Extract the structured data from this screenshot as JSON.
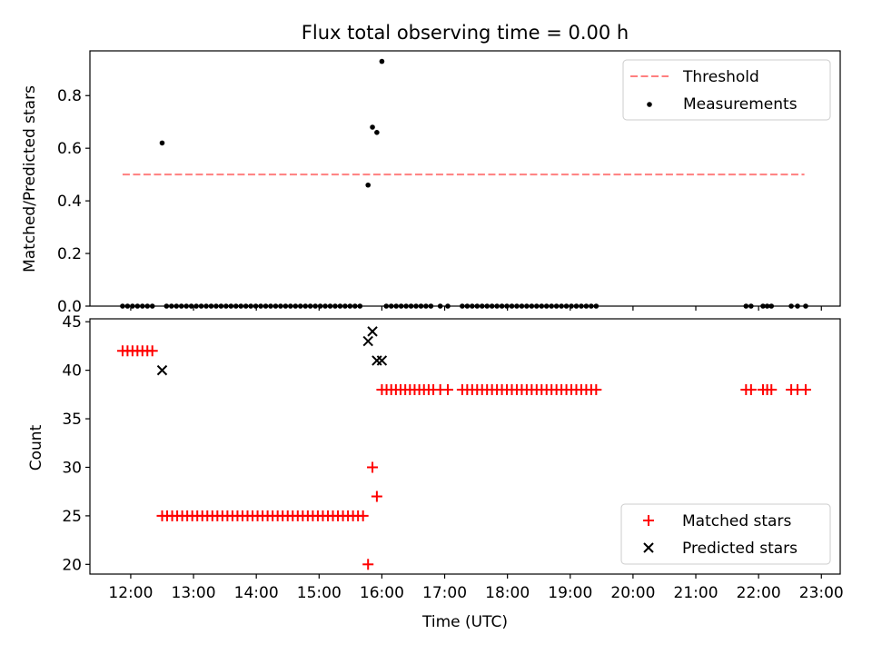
{
  "chart_data": [
    {
      "type": "scatter",
      "title": "Flux total observing time = 0.00 h",
      "ylabel": "Matched/Predicted stars",
      "xlim": [
        11.35,
        23.3
      ],
      "ylim": [
        0,
        0.97
      ],
      "yticks": [
        0.0,
        0.2,
        0.4,
        0.6,
        0.8
      ],
      "ytick_labels": [
        "0.0",
        "0.2",
        "0.4",
        "0.6",
        "0.8"
      ],
      "grid": false,
      "legend_position": "top-right",
      "series": [
        {
          "name": "Threshold",
          "kind": "dashed-line",
          "color": "#ff7f7f",
          "x": [
            11.87,
            22.73
          ],
          "y": [
            0.5,
            0.5
          ]
        },
        {
          "name": "Measurements",
          "kind": "dots",
          "color": "#000000",
          "points": [
            [
              12.5,
              0.62
            ],
            [
              15.78,
              0.46
            ],
            [
              15.85,
              0.68
            ],
            [
              15.92,
              0.66
            ],
            [
              16.0,
              0.93
            ]
          ],
          "zero_ranges": [
            [
              11.87,
              12.42,
              0.079
            ],
            [
              12.57,
              15.7,
              0.079
            ],
            [
              16.07,
              16.82,
              0.079
            ],
            [
              16.93,
              17.05,
              0.12
            ],
            [
              17.28,
              19.47,
              0.079
            ],
            [
              21.8,
              21.88,
              0.08
            ],
            [
              22.07,
              22.27,
              0.067
            ],
            [
              22.52,
              22.62,
              0.1
            ],
            [
              22.75,
              22.75,
              1
            ]
          ]
        }
      ]
    },
    {
      "type": "scatter",
      "xlabel": "Time (UTC)",
      "ylabel": "Count",
      "xlim": [
        11.35,
        23.3
      ],
      "ylim": [
        19,
        45.3
      ],
      "xticks": [
        12,
        13,
        14,
        15,
        16,
        17,
        18,
        19,
        20,
        21,
        22,
        23
      ],
      "xtick_labels": [
        "12:00",
        "13:00",
        "14:00",
        "15:00",
        "16:00",
        "17:00",
        "18:00",
        "19:00",
        "20:00",
        "21:00",
        "22:00",
        "23:00"
      ],
      "yticks": [
        20,
        25,
        30,
        35,
        40,
        45
      ],
      "ytick_labels": [
        "20",
        "25",
        "30",
        "35",
        "40",
        "45"
      ],
      "grid": false,
      "legend_position": "bottom-right",
      "series": [
        {
          "name": "Matched stars",
          "marker": "plus",
          "color": "#ff0000",
          "points": [
            [
              15.78,
              20
            ],
            [
              15.85,
              30
            ],
            [
              15.92,
              27
            ]
          ],
          "runs": [
            [
              11.87,
              12.42,
              0.079,
              42
            ],
            [
              12.5,
              15.7,
              0.08,
              25
            ],
            [
              16.0,
              16.82,
              0.0745,
              38
            ],
            [
              16.93,
              17.05,
              0.12,
              38
            ],
            [
              17.28,
              19.47,
              0.079,
              38
            ],
            [
              21.8,
              21.88,
              0.08,
              38
            ],
            [
              22.07,
              22.27,
              0.067,
              38
            ],
            [
              22.52,
              22.62,
              0.1,
              38
            ],
            [
              22.75,
              22.75,
              1,
              38
            ]
          ]
        },
        {
          "name": "Predicted stars",
          "marker": "x",
          "color": "#000000",
          "points": [
            [
              12.5,
              40
            ],
            [
              15.78,
              43
            ],
            [
              15.85,
              44
            ],
            [
              15.92,
              41
            ],
            [
              16.0,
              41
            ]
          ]
        }
      ]
    }
  ]
}
